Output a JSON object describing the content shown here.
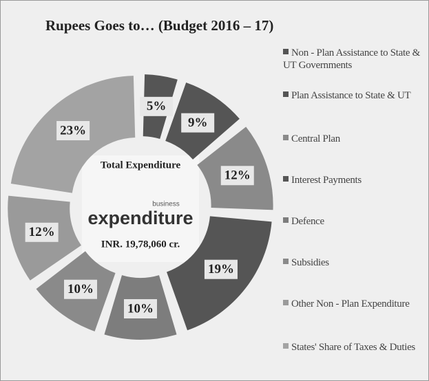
{
  "chart_data": {
    "type": "donut",
    "title": "Rupees Goes to… (Budget 2016 – 17)",
    "categories": [
      "Non - Plan Assistance to State & UT Governments",
      "Plan Assistance to State & UT",
      "Central Plan",
      "Interest Payments",
      "Defence",
      "Subsidies",
      "Other Non - Plan Expenditure",
      "States' Share of Taxes & Duties"
    ],
    "values": [
      5,
      9,
      12,
      19,
      10,
      10,
      12,
      23
    ],
    "value_labels": [
      "5%",
      "9%",
      "12%",
      "19%",
      "10%",
      "10%",
      "12%",
      "23%"
    ],
    "colors": [
      "#555555",
      "#555555",
      "#8a8a8a",
      "#555555",
      "#7d7d7d",
      "#8a8a8a",
      "#9a9a9a",
      "#a3a3a3"
    ],
    "center_title": "Total Expenditure",
    "center_image_words": [
      "business",
      "expenditure"
    ],
    "center_value": "INR. 19,78,060 cr.",
    "legend": "right"
  }
}
